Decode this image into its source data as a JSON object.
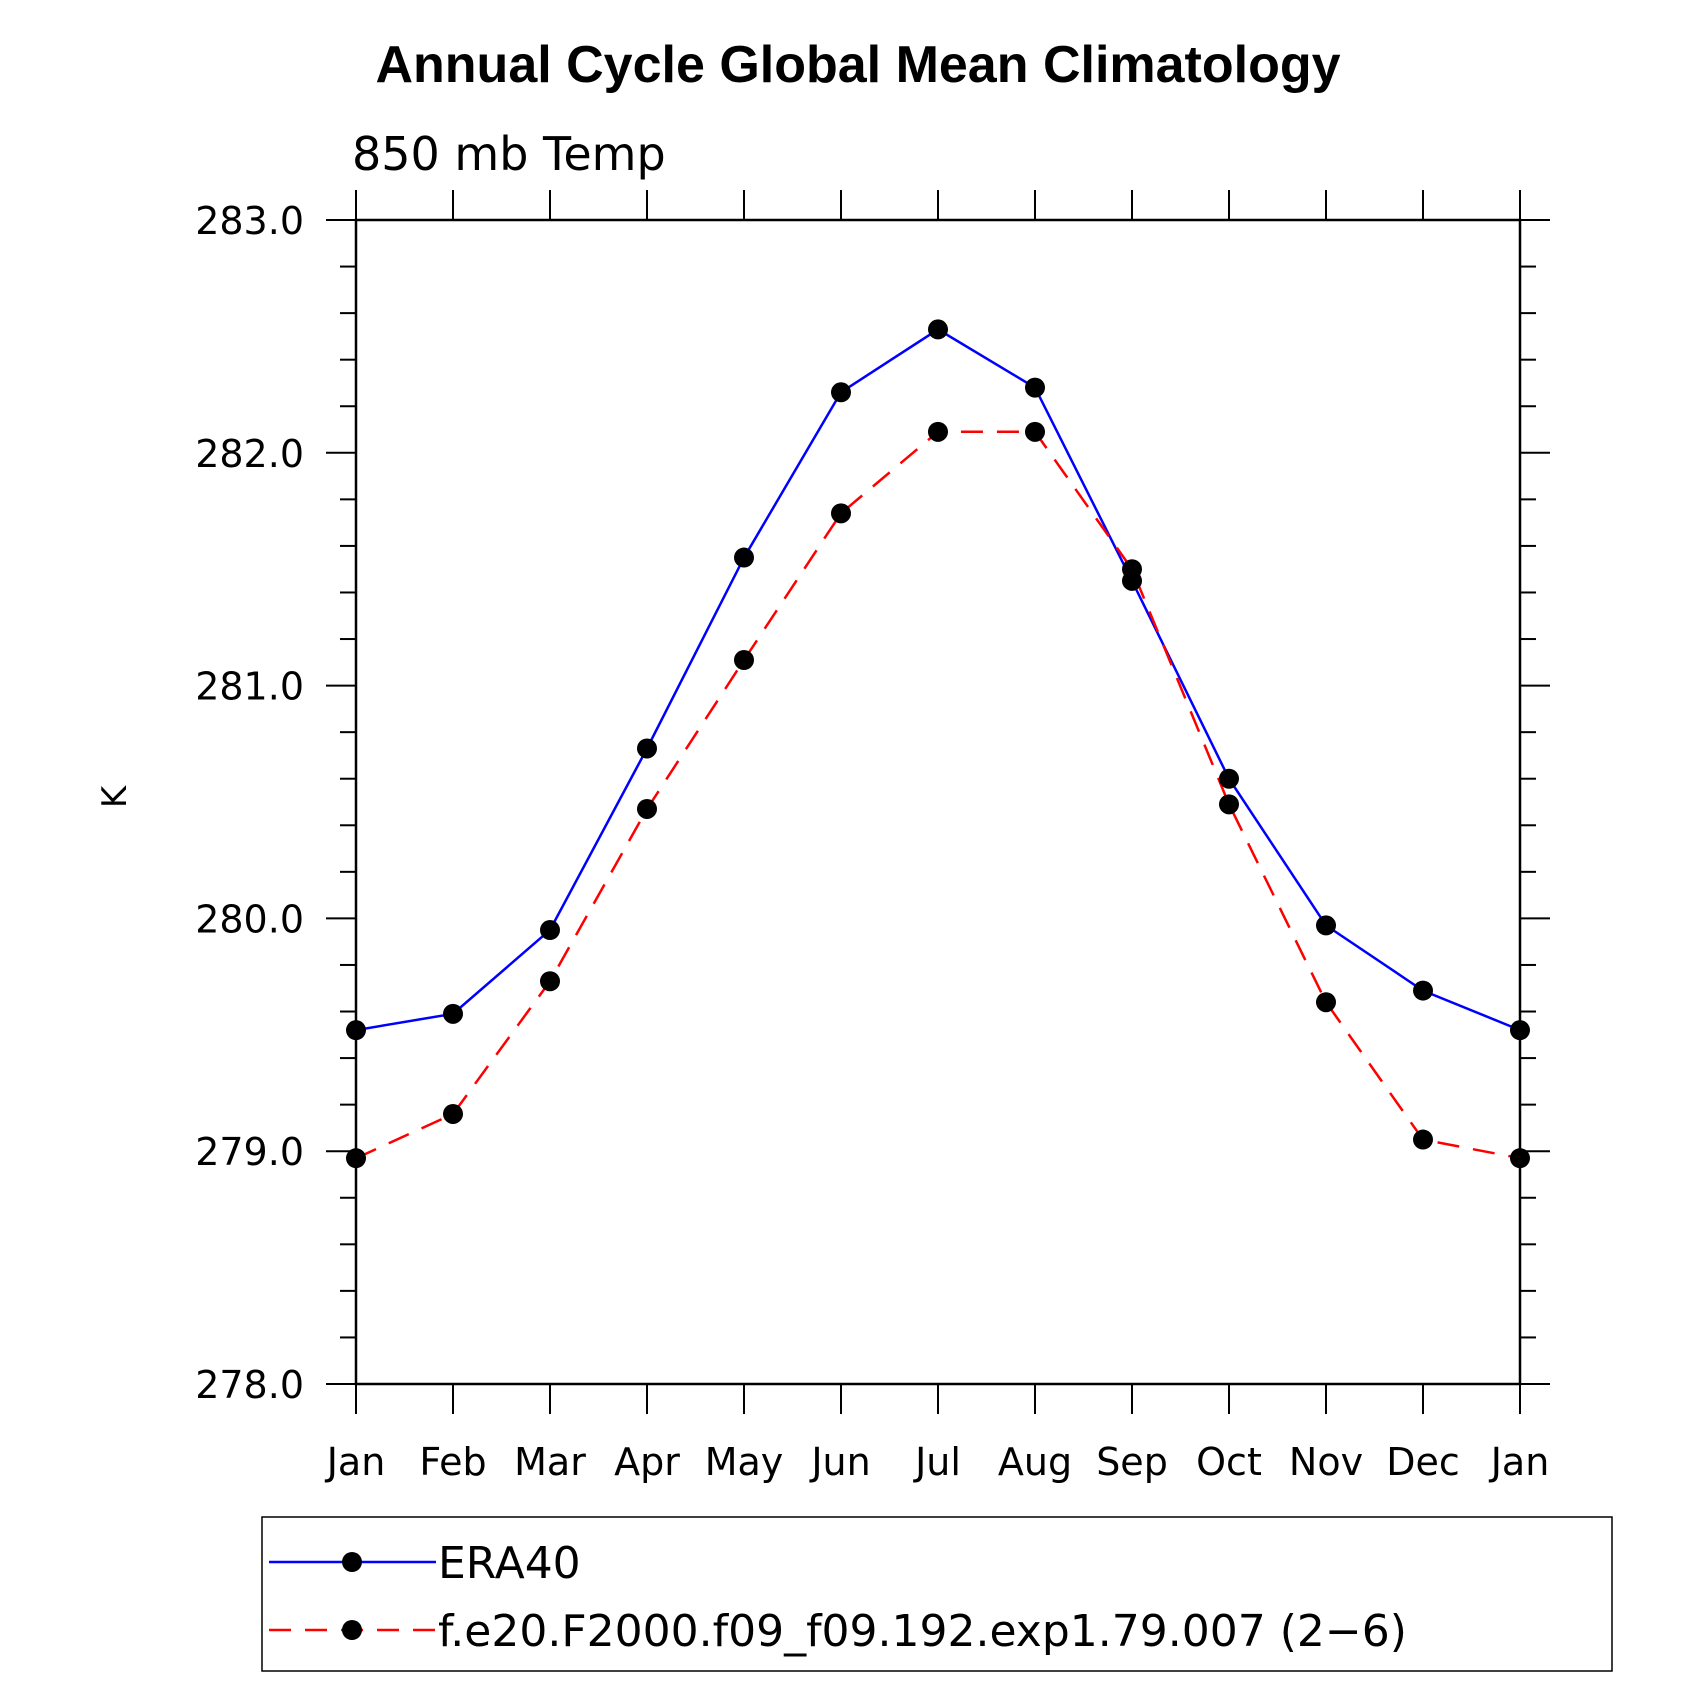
{
  "chart_data": {
    "type": "line",
    "title": "Annual Cycle Global Mean Climatology",
    "subtitle": "850 mb Temp",
    "ylabel": "K",
    "xlabel": "",
    "categories": [
      "Jan",
      "Feb",
      "Mar",
      "Apr",
      "May",
      "Jun",
      "Jul",
      "Aug",
      "Sep",
      "Oct",
      "Nov",
      "Dec",
      "Jan"
    ],
    "ylim": [
      278.0,
      283.0
    ],
    "yticks": [
      "278.0",
      "279.0",
      "280.0",
      "281.0",
      "282.0",
      "283.0"
    ],
    "legend_position": "bottom",
    "series": [
      {
        "name": "ERA40",
        "color": "#0000ff",
        "dash": "solid",
        "values": [
          279.52,
          279.59,
          279.95,
          280.73,
          281.55,
          282.26,
          282.53,
          282.28,
          281.45,
          280.6,
          279.97,
          279.69,
          279.52
        ]
      },
      {
        "name": "f.e20.F2000.f09_f09.192.exp1.79.007 (2−6)",
        "color": "#ff0000",
        "dash": "dashed",
        "values": [
          278.97,
          279.16,
          279.73,
          280.47,
          281.11,
          281.74,
          282.09,
          282.09,
          281.5,
          280.49,
          279.64,
          279.05,
          278.97
        ]
      }
    ]
  }
}
